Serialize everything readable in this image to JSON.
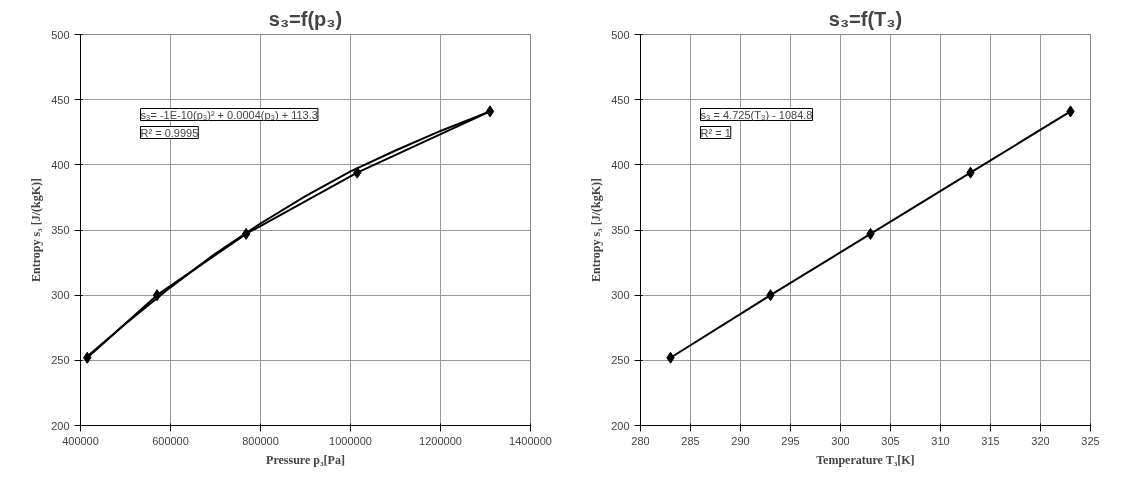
{
  "chart_data": [
    {
      "type": "line",
      "title": "s₃=f(p₃)",
      "xlabel": "Pressure p₃[Pa]",
      "ylabel": "Entropy s₃ [J/(kgK)]",
      "annotations": [
        "s₃= -1E-10(p₃)² + 0.0004(p₃) + 113.3",
        "R² = 0.9995"
      ],
      "x": [
        415000,
        570000,
        768000,
        1015000,
        1310000
      ],
      "series": [
        {
          "color": "#000000",
          "values": [
            252,
            300,
            347,
            394,
            441
          ],
          "marker": "diamond"
        },
        {
          "color": "#000000",
          "x": [
            415000,
            500000,
            600000,
            700000,
            800000,
            900000,
            1000000,
            1100000,
            1200000,
            1310000
          ],
          "values": [
            253,
            278,
            306,
            332,
            355,
            376,
            395,
            411,
            426,
            441
          ],
          "marker": "none"
        }
      ],
      "xlim": [
        400000,
        1400000
      ],
      "xticks": [
        400000,
        600000,
        800000,
        1000000,
        1200000,
        1400000
      ],
      "ylim": [
        200,
        500
      ],
      "yticks": [
        200,
        250,
        300,
        350,
        400,
        450,
        500
      ],
      "grid": true,
      "line_style": "solid"
    },
    {
      "type": "line",
      "title": "s₃=f(T₃)",
      "xlabel": "Temperature T₃[K]",
      "ylabel": "Entropy s₃ [J/(kgK)]",
      "annotations": [
        "s₃ = 4.725(T₃) - 1084.8",
        "R² = 1"
      ],
      "x": [
        283,
        293,
        303,
        313,
        323
      ],
      "series": [
        {
          "color": "#000000",
          "values": [
            252,
            300,
            347,
            394,
            441
          ],
          "marker": "diamond"
        }
      ],
      "xlim": [
        280,
        325
      ],
      "xticks": [
        280,
        285,
        290,
        295,
        300,
        305,
        310,
        315,
        320,
        325
      ],
      "ylim": [
        200,
        500
      ],
      "yticks": [
        200,
        250,
        300,
        350,
        400,
        450,
        500
      ],
      "grid": true,
      "line_style": "solid"
    }
  ]
}
